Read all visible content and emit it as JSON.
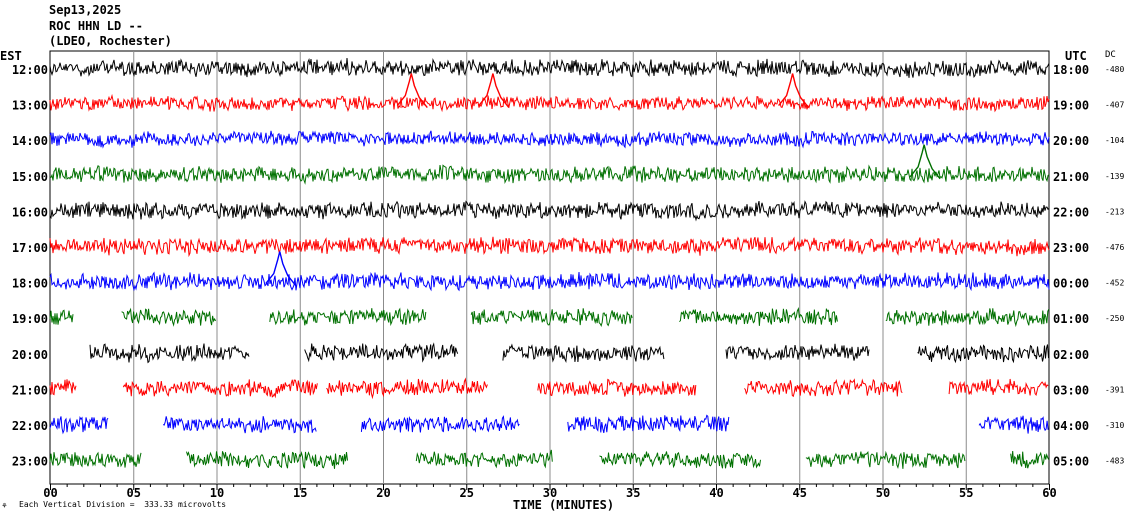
{
  "header": {
    "date": "Sep13,2025",
    "station": "ROC HHN LD --",
    "network": "(LDEO, Rochester)"
  },
  "footer": {
    "scale_note": "Each Vertical Division =  333.33 microvolts"
  },
  "chart_data": {
    "type": "line",
    "title": "",
    "xlabel": "TIME (MINUTES)",
    "left_axis_label": "EST",
    "right_axis_label": "UTC",
    "dc_label": "DC",
    "xlim": [
      0,
      60
    ],
    "x_ticks": [
      "00",
      "05",
      "10",
      "15",
      "20",
      "25",
      "30",
      "35",
      "40",
      "45",
      "50",
      "55",
      "60"
    ],
    "grid": "vertical lines every 5 minutes",
    "trace_colors": [
      "#000000",
      "#ff0000",
      "#0000ff",
      "#007000"
    ],
    "rows": [
      {
        "est": "12:00",
        "utc": "18:00",
        "dc": "-480",
        "color": "#000000",
        "segments": [
          [
            0,
            60
          ]
        ],
        "amp": 7
      },
      {
        "est": "13:00",
        "utc": "19:00",
        "dc": "-407",
        "color": "#ff0000",
        "segments": [
          [
            0,
            60
          ]
        ],
        "amp": 6
      },
      {
        "est": "14:00",
        "utc": "20:00",
        "dc": "-104",
        "color": "#0000ff",
        "segments": [
          [
            0,
            60
          ]
        ],
        "amp": 6
      },
      {
        "est": "15:00",
        "utc": "21:00",
        "dc": "-139",
        "color": "#007000",
        "segments": [
          [
            0,
            60
          ]
        ],
        "amp": 7
      },
      {
        "est": "16:00",
        "utc": "22:00",
        "dc": "-213",
        "color": "#000000",
        "segments": [
          [
            0,
            60
          ]
        ],
        "amp": 7
      },
      {
        "est": "17:00",
        "utc": "23:00",
        "dc": "-476",
        "color": "#ff0000",
        "segments": [
          [
            0,
            60
          ]
        ],
        "amp": 7
      },
      {
        "est": "18:00",
        "utc": "00:00",
        "dc": "-452",
        "color": "#0000ff",
        "segments": [
          [
            0,
            60
          ]
        ],
        "amp": 7
      },
      {
        "est": "19:00",
        "utc": "01:00",
        "dc": "-250",
        "color": "#007000",
        "segments": [
          [
            0,
            1.4
          ],
          [
            4.3,
            10
          ],
          [
            13.2,
            22.6
          ],
          [
            25.3,
            35
          ],
          [
            37.8,
            47.3
          ],
          [
            50.2,
            60
          ]
        ],
        "amp": 7
      },
      {
        "est": "20:00",
        "utc": "02:00",
        "dc": "",
        "color": "#000000",
        "segments": [
          [
            2.4,
            12
          ],
          [
            15.3,
            24.5
          ],
          [
            27.2,
            36.9
          ],
          [
            40.6,
            49.2
          ],
          [
            52.1,
            60
          ]
        ],
        "amp": 7
      },
      {
        "est": "21:00",
        "utc": "03:00",
        "dc": "-391",
        "color": "#ff0000",
        "segments": [
          [
            0,
            1.6
          ],
          [
            4.4,
            16.1
          ],
          [
            16.6,
            26.3
          ],
          [
            29.3,
            38.8
          ],
          [
            41.7,
            51.2
          ],
          [
            54,
            60
          ]
        ],
        "amp": 7
      },
      {
        "est": "22:00",
        "utc": "04:00",
        "dc": "-310",
        "color": "#0000ff",
        "segments": [
          [
            0,
            3.5
          ],
          [
            6.8,
            16
          ],
          [
            18.7,
            28.2
          ],
          [
            31.1,
            40.8
          ],
          [
            55.8,
            60
          ]
        ],
        "amp": 7
      },
      {
        "est": "23:00",
        "utc": "05:00",
        "dc": "-483",
        "color": "#007000",
        "segments": [
          [
            0,
            5.5
          ],
          [
            8.2,
            17.9
          ],
          [
            22,
            30.2
          ],
          [
            33,
            42.7
          ],
          [
            45.4,
            55
          ],
          [
            57.7,
            60
          ]
        ],
        "amp": 7
      }
    ],
    "events": [
      {
        "row": 1,
        "minute": 21.7,
        "label": "spike"
      },
      {
        "row": 1,
        "minute": 26.6,
        "label": "spike"
      },
      {
        "row": 1,
        "minute": 44.6,
        "label": "spike"
      },
      {
        "row": 3,
        "minute": 52.5,
        "label": "spike"
      },
      {
        "row": 6,
        "minute": 13.8,
        "label": "spike"
      }
    ]
  }
}
